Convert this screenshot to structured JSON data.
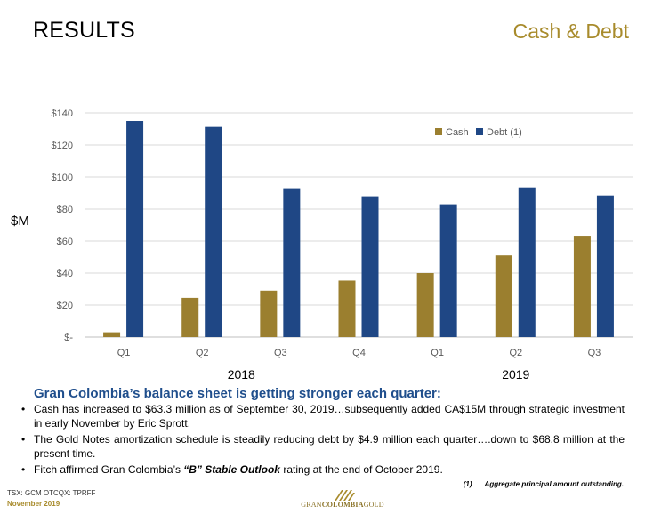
{
  "header": {
    "title": "RESULTS",
    "section": "Cash & Debt"
  },
  "colors": {
    "cash": "#9b7f2f",
    "debt": "#1f4785",
    "accent_gold": "#a88b2c",
    "headline_blue": "#1f4e8c"
  },
  "chart_data": {
    "type": "bar",
    "categories": [
      "Q1",
      "Q2",
      "Q3",
      "Q4",
      "Q1",
      "Q2",
      "Q3"
    ],
    "groups": [
      {
        "label": "2018",
        "span": [
          0,
          3
        ]
      },
      {
        "label": "2019",
        "span": [
          4,
          6
        ]
      }
    ],
    "series": [
      {
        "name": "Cash",
        "values": [
          3,
          24.5,
          29,
          35.3,
          40,
          51,
          63.3
        ]
      },
      {
        "name": "Debt (1)",
        "values": [
          135,
          131.3,
          93,
          88,
          83,
          93.5,
          88.5
        ]
      }
    ],
    "ylabel": "$M",
    "ylim": [
      0,
      140
    ],
    "yticks": [
      0,
      20,
      40,
      60,
      80,
      100,
      120,
      140
    ],
    "ytick_labels": [
      "$-",
      "$20",
      "$40",
      "$60",
      "$80",
      "$100",
      "$120",
      "$140"
    ],
    "grid": true,
    "legend_position": "top-right"
  },
  "commentary": {
    "headline": "Gran Colombia’s balance sheet is getting stronger each quarter:",
    "bullets": [
      "Cash has increased to $63.3 million as of September 30, 2019…subsequently added CA$15M through strategic investment in early November by Eric Sprott.",
      "The Gold Notes amortization schedule is steadily reducing debt by $4.9 million each quarter….down to $68.8 million at the present time."
    ],
    "bullet3": {
      "before": "Fitch affirmed Gran Colombia’s ",
      "emphasis": "“B” Stable Outlook",
      "after": " rating at the end of October 2019."
    }
  },
  "footnote": {
    "number": "(1)",
    "text": "Aggregate principal amount outstanding."
  },
  "footer": {
    "ticker": "TSX: GCM  OTCQX: TPRFF",
    "date": "November 2019",
    "logo_text_regular": "GRAN",
    "logo_text_bold": "COLOMBIA",
    "logo_text_end": "GOLD"
  }
}
